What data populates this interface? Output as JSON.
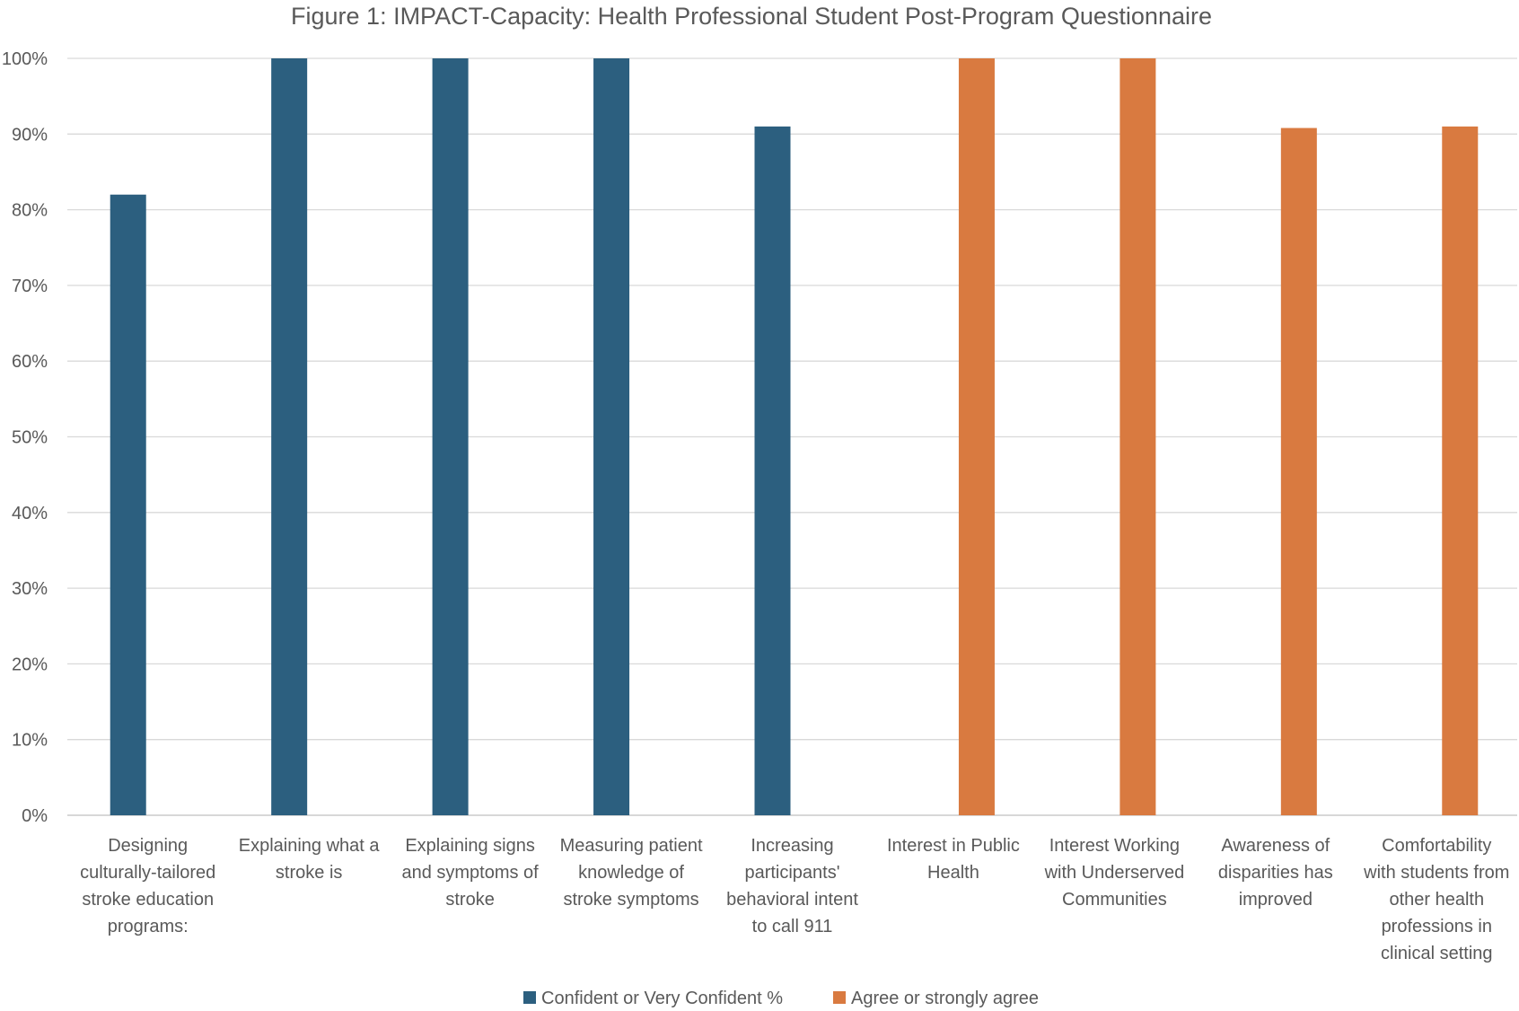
{
  "chart_data": {
    "type": "bar",
    "title": "Figure 1: IMPACT-Capacity: Health Professional Student Post-Program Questionnaire",
    "xlabel": "",
    "ylabel": "",
    "ylim": [
      0,
      100
    ],
    "yticks": [
      "0%",
      "10%",
      "20%",
      "30%",
      "40%",
      "50%",
      "60%",
      "70%",
      "80%",
      "90%",
      "100%"
    ],
    "grid": true,
    "legend_position": "bottom",
    "categories": [
      [
        "Designing",
        "culturally-tailored",
        "stroke education",
        "programs:"
      ],
      [
        "Explaining what a",
        "stroke is"
      ],
      [
        "Explaining signs",
        "and symptoms of",
        "stroke"
      ],
      [
        "Measuring patient",
        "knowledge of",
        "stroke symptoms"
      ],
      [
        "Increasing",
        "participants'",
        "behavioral intent",
        "to call 911"
      ],
      [
        "Interest in Public",
        "Health"
      ],
      [
        "Interest Working",
        "with Underserved",
        "Communities"
      ],
      [
        "Awareness of",
        "disparities has",
        "improved"
      ],
      [
        "Comfortability",
        "with students from",
        "other health",
        "professions in",
        "clinical setting"
      ]
    ],
    "series": [
      {
        "name": "Confident or Very Confident %",
        "color": "#2c5f7f",
        "values": [
          82,
          100,
          100,
          100,
          91,
          null,
          null,
          null,
          null
        ]
      },
      {
        "name": "Agree or strongly agree",
        "color": "#d97a40",
        "values": [
          null,
          null,
          null,
          null,
          null,
          100,
          100,
          90.8,
          91
        ]
      }
    ]
  }
}
